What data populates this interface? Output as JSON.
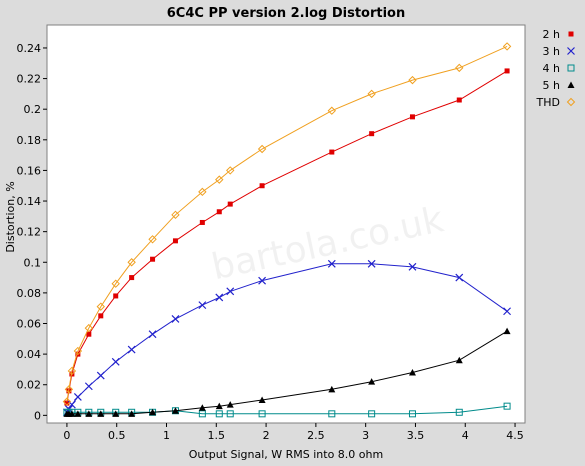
{
  "chart_data": {
    "type": "line",
    "title": "6C4C PP version 2.log Distortion",
    "xlabel": "Output Signal, W RMS into 8.0 ohm",
    "ylabel": "Distortion, %",
    "xlim": [
      -0.2,
      4.6
    ],
    "ylim": [
      -0.005,
      0.255
    ],
    "xticks": [
      0,
      0.5,
      1,
      1.5,
      2,
      2.5,
      3,
      3.5,
      4,
      4.5
    ],
    "xtick_labels": [
      "0",
      "0.5",
      "1",
      "1.5",
      "2",
      "2.5",
      "3",
      "3.5",
      "4",
      "4.5"
    ],
    "yticks": [
      0,
      0.02,
      0.04,
      0.06,
      0.08,
      0.1,
      0.12,
      0.14,
      0.16,
      0.18,
      0.2,
      0.22,
      0.24
    ],
    "ytick_labels": [
      "0",
      "0.02",
      "0.04",
      "0.06",
      "0.08",
      "0.1",
      "0.12",
      "0.14",
      "0.16",
      "0.18",
      "0.2",
      "0.22",
      "0.24"
    ],
    "grid": false,
    "legend_position": "right",
    "watermark": "bartola.co.uk",
    "series": [
      {
        "name": "2 h",
        "color": "#e00000",
        "marker": "filled-square",
        "x": [
          0.0,
          0.02,
          0.05,
          0.11,
          0.22,
          0.34,
          0.49,
          0.65,
          0.86,
          1.09,
          1.36,
          1.53,
          1.64,
          1.96,
          2.66,
          3.06,
          3.47,
          3.94,
          4.42
        ],
        "y": [
          0.008,
          0.016,
          0.027,
          0.04,
          0.053,
          0.065,
          0.078,
          0.09,
          0.102,
          0.114,
          0.126,
          0.133,
          0.138,
          0.15,
          0.172,
          0.184,
          0.195,
          0.206,
          0.225
        ]
      },
      {
        "name": "3 h",
        "color": "#2222cc",
        "marker": "x",
        "x": [
          0.0,
          0.02,
          0.05,
          0.11,
          0.22,
          0.34,
          0.49,
          0.65,
          0.86,
          1.09,
          1.36,
          1.53,
          1.64,
          1.96,
          2.66,
          3.06,
          3.47,
          3.94,
          4.42
        ],
        "y": [
          0.002,
          0.004,
          0.007,
          0.012,
          0.019,
          0.026,
          0.035,
          0.043,
          0.053,
          0.063,
          0.072,
          0.077,
          0.081,
          0.088,
          0.099,
          0.099,
          0.097,
          0.09,
          0.068
        ]
      },
      {
        "name": "4 h",
        "color": "#008b8b",
        "marker": "hollow-square",
        "x": [
          0.0,
          0.02,
          0.05,
          0.11,
          0.22,
          0.34,
          0.49,
          0.65,
          0.86,
          1.09,
          1.36,
          1.53,
          1.64,
          1.96,
          2.66,
          3.06,
          3.47,
          3.94,
          4.42
        ],
        "y": [
          0.002,
          0.002,
          0.002,
          0.002,
          0.002,
          0.002,
          0.002,
          0.002,
          0.002,
          0.003,
          0.001,
          0.001,
          0.001,
          0.001,
          0.001,
          0.001,
          0.001,
          0.002,
          0.006
        ]
      },
      {
        "name": "5 h",
        "color": "#000000",
        "marker": "filled-triangle",
        "x": [
          0.0,
          0.02,
          0.05,
          0.11,
          0.22,
          0.34,
          0.49,
          0.65,
          0.86,
          1.09,
          1.36,
          1.53,
          1.64,
          1.96,
          2.66,
          3.06,
          3.47,
          3.94,
          4.42
        ],
        "y": [
          0.001,
          0.001,
          0.001,
          0.001,
          0.001,
          0.001,
          0.001,
          0.001,
          0.002,
          0.003,
          0.005,
          0.006,
          0.007,
          0.01,
          0.017,
          0.022,
          0.028,
          0.036,
          0.055
        ]
      },
      {
        "name": "THD",
        "color": "#f0a020",
        "marker": "hollow-diamond",
        "x": [
          0.0,
          0.02,
          0.05,
          0.11,
          0.22,
          0.34,
          0.49,
          0.65,
          0.86,
          1.09,
          1.36,
          1.53,
          1.64,
          1.96,
          2.66,
          3.06,
          3.47,
          3.94,
          4.42
        ],
        "y": [
          0.009,
          0.017,
          0.029,
          0.042,
          0.057,
          0.071,
          0.086,
          0.1,
          0.115,
          0.131,
          0.146,
          0.154,
          0.16,
          0.174,
          0.199,
          0.21,
          0.219,
          0.227,
          0.241
        ]
      }
    ]
  }
}
